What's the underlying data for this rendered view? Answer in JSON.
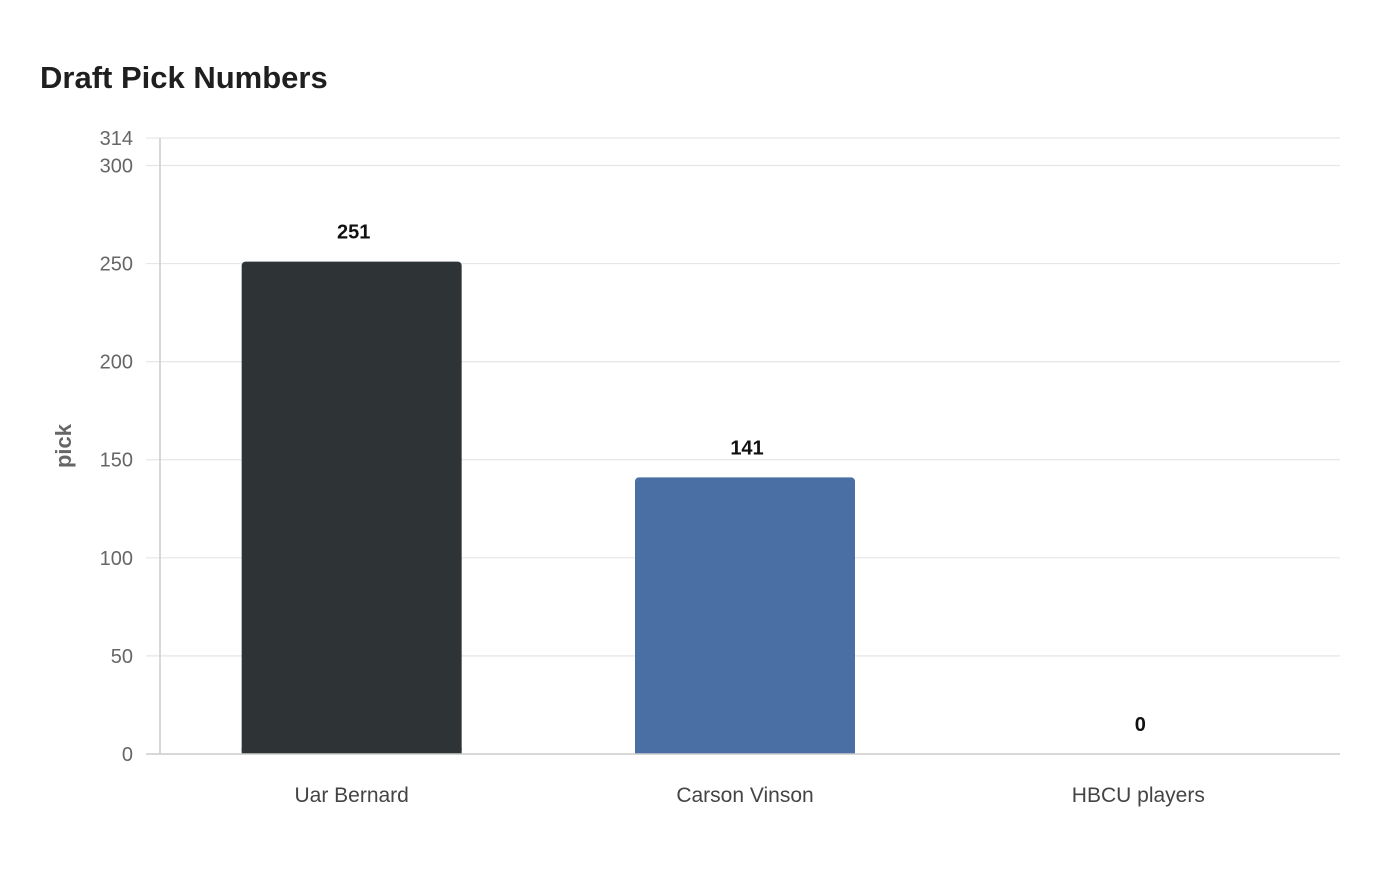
{
  "chart_data": {
    "type": "bar",
    "title": "Draft Pick Numbers",
    "xlabel": "",
    "ylabel": "pick",
    "categories": [
      "Uar Bernard",
      "Carson Vinson",
      "HBCU players"
    ],
    "values": [
      251,
      141,
      0
    ],
    "bar_colors": [
      "#2e3436",
      "#4a6fa5",
      "#8a8a8a"
    ],
    "ylim": [
      0,
      314
    ],
    "yticks": [
      0,
      50,
      100,
      150,
      200,
      250,
      300,
      314
    ],
    "grid": true,
    "legend": "none"
  }
}
